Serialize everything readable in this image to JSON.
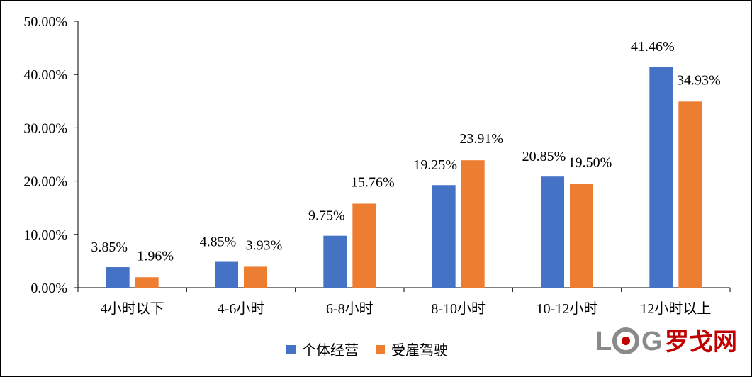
{
  "chart_data": {
    "type": "bar",
    "categories": [
      "4小时以下",
      "4-6小时",
      "6-8小时",
      "8-10小时",
      "10-12小时",
      "12小时以上"
    ],
    "series": [
      {
        "name": "个体经营",
        "values": [
          3.85,
          4.85,
          9.75,
          19.25,
          20.85,
          41.46
        ],
        "labels": [
          "3.85%",
          "4.85%",
          "9.75%",
          "19.25%",
          "20.85%",
          "41.46%"
        ],
        "color": "#4472C4"
      },
      {
        "name": "受雇驾驶",
        "values": [
          1.96,
          3.93,
          15.76,
          23.91,
          19.5,
          34.93
        ],
        "labels": [
          "1.96%",
          "3.93%",
          "15.76%",
          "23.91%",
          "19.50%",
          "34.93%"
        ],
        "color": "#ED7D31"
      }
    ],
    "yticks": [
      "0.00%",
      "10.00%",
      "20.00%",
      "30.00%",
      "40.00%",
      "50.00%"
    ],
    "ylim": [
      0,
      50
    ],
    "grid": false,
    "legend_position": "bottom"
  },
  "watermark": {
    "text": "LOG罗戈网",
    "color": "#C00000",
    "logo_color": "#8A8A8A"
  }
}
